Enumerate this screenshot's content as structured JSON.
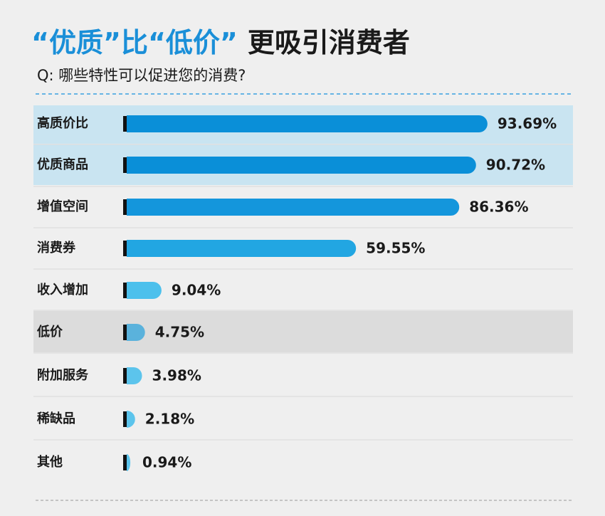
{
  "chart_data": {
    "type": "bar",
    "title_highlight": "“优质”比“低价”",
    "title_rest": "更吸引消费者",
    "subtitle": "Q: 哪些特性可以促进您的消费?",
    "categories": [
      "高质价比",
      "优质商品",
      "增值空间",
      "消费券",
      "收入增加",
      "低价",
      "附加服务",
      "稀缺品",
      "其他"
    ],
    "values": [
      93.69,
      90.72,
      86.36,
      59.55,
      9.04,
      4.75,
      3.98,
      2.18,
      0.94
    ],
    "value_labels": [
      "93.69%",
      "90.72%",
      "86.36%",
      "59.55%",
      "9.04%",
      "4.75%",
      "3.98%",
      "2.18%",
      "0.94%"
    ],
    "colors": [
      "#0a8fd8",
      "#0a8fd8",
      "#1496dc",
      "#22a6e2",
      "#4cc0ec",
      "#5ab2dc",
      "#5cc4ec",
      "#5cc4ec",
      "#5cc4ec"
    ]
  }
}
